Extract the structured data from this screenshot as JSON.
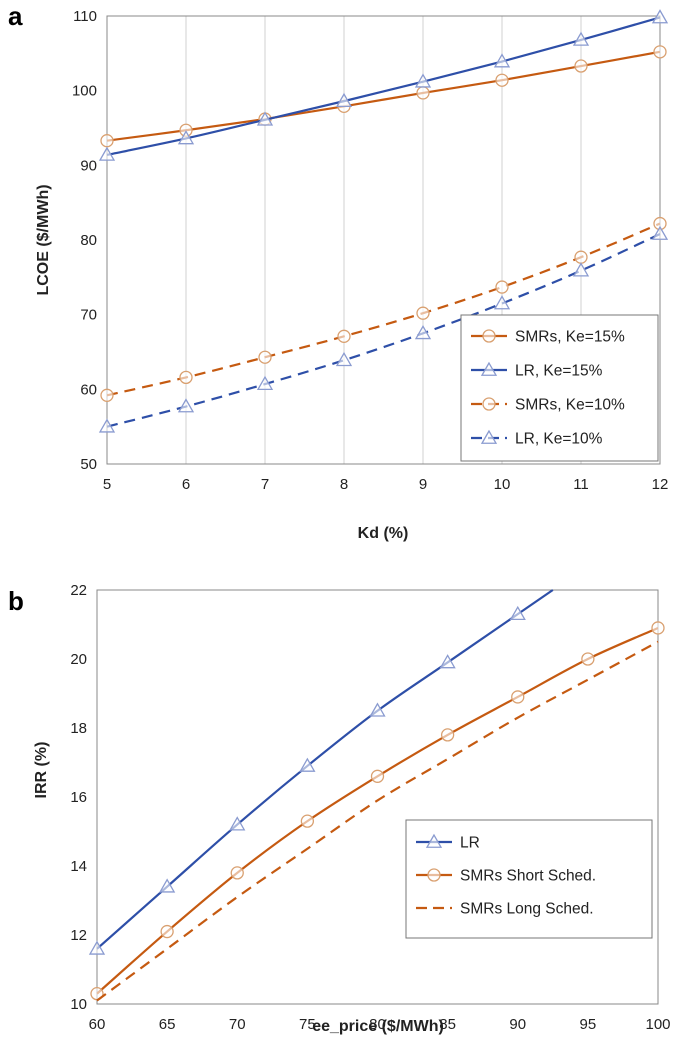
{
  "chart_data": [
    {
      "panel_label": "a",
      "type": "line",
      "xlabel": "Kd (%)",
      "ylabel": "LCOE ($/MWh)",
      "xlim": [
        5,
        12
      ],
      "ylim": [
        50,
        110
      ],
      "xticks": [
        "5",
        "6",
        "7",
        "8",
        "9",
        "10",
        "11",
        "12"
      ],
      "yticks": [
        "50",
        "60",
        "70",
        "80",
        "90",
        "100",
        "110"
      ],
      "grid": "vertical",
      "legend_position": "bottom-right",
      "x": [
        5,
        6,
        7,
        8,
        9,
        10,
        11,
        12
      ],
      "series": [
        {
          "name": "SMRs, Ke=15%",
          "color": "#C55A11",
          "dash": "solid",
          "marker": "circle",
          "values": [
            93.3,
            94.7,
            96.2,
            97.9,
            99.7,
            101.4,
            103.3,
            105.2
          ]
        },
        {
          "name": "LR, Ke=15%",
          "color": "#2E4FA8",
          "dash": "solid",
          "marker": "triangle",
          "values": [
            91.4,
            93.6,
            96.1,
            98.6,
            101.2,
            103.9,
            106.8,
            109.8
          ]
        },
        {
          "name": "SMRs, Ke=10%",
          "color": "#C55A11",
          "dash": "dashed",
          "marker": "circle",
          "values": [
            59.2,
            61.6,
            64.3,
            67.1,
            70.2,
            73.7,
            77.7,
            82.2
          ]
        },
        {
          "name": "LR, Ke=10%",
          "color": "#2E4FA8",
          "dash": "dashed",
          "marker": "triangle",
          "values": [
            55.0,
            57.7,
            60.7,
            63.9,
            67.5,
            71.5,
            75.9,
            80.8
          ]
        }
      ]
    },
    {
      "panel_label": "b",
      "type": "line",
      "xlabel": "ee_price ($/MWh)",
      "ylabel": "IRR (%)",
      "xlim": [
        60,
        100
      ],
      "ylim": [
        10,
        22
      ],
      "xticks": [
        "60",
        "65",
        "70",
        "75",
        "80",
        "85",
        "90",
        "95",
        "100"
      ],
      "yticks": [
        "10",
        "12",
        "14",
        "16",
        "18",
        "20",
        "22"
      ],
      "grid": "none",
      "legend_position": "bottom-right",
      "series": [
        {
          "name": "LR",
          "color": "#2E4FA8",
          "dash": "solid",
          "marker": "triangle",
          "x": [
            60,
            65,
            70,
            75,
            80,
            85,
            90,
            92.5
          ],
          "values": [
            11.6,
            13.4,
            15.2,
            16.9,
            18.5,
            19.9,
            21.3,
            22.0
          ],
          "marked": [
            true,
            true,
            true,
            true,
            true,
            true,
            true,
            false
          ]
        },
        {
          "name": "SMRs Short Sched.",
          "color": "#C55A11",
          "dash": "solid",
          "marker": "circle",
          "x": [
            60,
            65,
            70,
            75,
            80,
            85,
            90,
            95,
            100
          ],
          "values": [
            10.3,
            12.1,
            13.8,
            15.3,
            16.6,
            17.8,
            18.9,
            20.0,
            20.9
          ]
        },
        {
          "name": "SMRs Long Sched.",
          "color": "#C55A11",
          "dash": "dashed",
          "marker": "none",
          "x": [
            60,
            65,
            70,
            75,
            80,
            85,
            90,
            95,
            100
          ],
          "values": [
            10.1,
            11.6,
            13.1,
            14.5,
            15.9,
            17.1,
            18.3,
            19.4,
            20.5
          ]
        }
      ]
    }
  ]
}
